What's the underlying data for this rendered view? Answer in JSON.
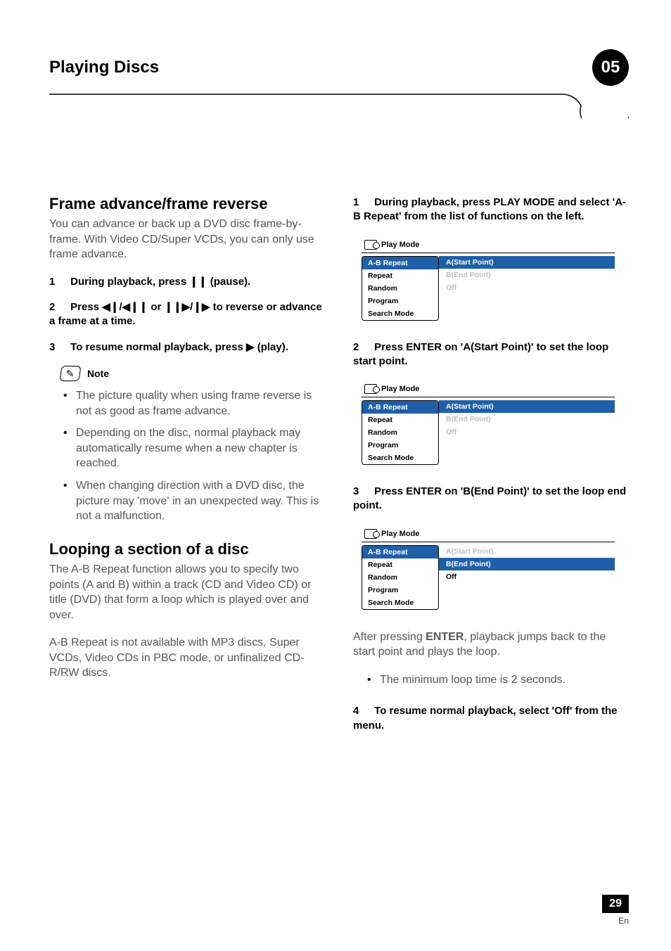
{
  "header": {
    "section_title": "Playing Discs",
    "badge": "05"
  },
  "left": {
    "topic1": "Frame advance/frame reverse",
    "intro1": "You can advance or back up a DVD disc frame-by-frame. With Video CD/Super VCDs, you can only use frame advance.",
    "step1_num": "1",
    "step1": "During playback, press ❙❙ (pause).",
    "step2_num": "2",
    "step2": "Press ◀❙/◀❙❙ or ❙❙▶/❙▶ to reverse or advance a frame at a time.",
    "step3_num": "3",
    "step3": "To resume normal playback, press ▶ (play).",
    "note_label": "Note",
    "bullets1": [
      "The picture quality when using frame reverse is not as good as frame advance.",
      "Depending on the disc, normal playback may automatically resume when a new chapter is reached.",
      "When changing direction with a DVD disc, the picture may 'move' in an unexpected way. This is not a malfunction."
    ],
    "topic2": "Looping a section of a disc",
    "intro2": "The A-B Repeat function allows you to specify two points (A and B) within a track (CD and Video CD) or title (DVD) that form a loop which is played over and over.",
    "intro3": "A-B Repeat is not available with MP3 discs, Super VCDs, Video CDs in PBC mode, or unfinalized CD-R/RW discs."
  },
  "right": {
    "step1_num": "1",
    "step1": "During playback, press PLAY MODE and select 'A-B Repeat' from the list of functions on the left.",
    "step2_num": "2",
    "step2": "Press ENTER on 'A(Start Point)' to set the loop start point.",
    "step3_num": "3",
    "step3": "Press ENTER on 'B(End Point)' to set the loop end point.",
    "after_text_a": "After pressing ",
    "after_text_bold": "ENTER",
    "after_text_b": ", playback jumps back to the start point and plays the loop.",
    "bullets2": [
      "The minimum loop time is 2 seconds."
    ],
    "step4_num": "4",
    "step4": "To resume normal playback, select 'Off' from the menu."
  },
  "playmode": {
    "title": "Play Mode",
    "left_items": [
      "A-B Repeat",
      "Repeat",
      "Random",
      "Program",
      "Search Mode"
    ],
    "right_items": [
      "A(Start Point)",
      "B(End Point)",
      "Off"
    ],
    "box1": {
      "left_sel": 0,
      "right_sel": 0,
      "right_dark": []
    },
    "box2": {
      "left_sel": 0,
      "right_sel": 0,
      "right_dark": []
    },
    "box3": {
      "left_sel": 0,
      "right_sel": 1,
      "right_dark": [
        2
      ]
    }
  },
  "footer": {
    "page": "29",
    "lang": "En"
  },
  "colors": {
    "sel_bg": "#1f5fa8",
    "grey_text": "#bfbfbf",
    "body_text": "#555555"
  }
}
